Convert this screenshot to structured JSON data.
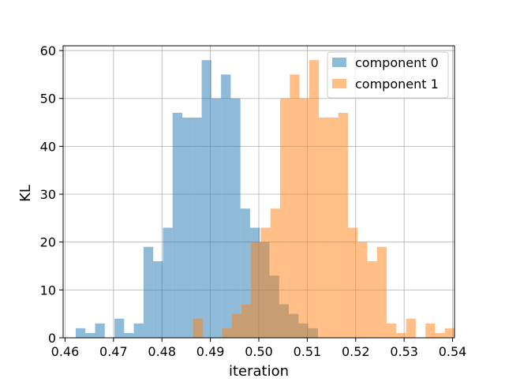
{
  "chart_data": {
    "type": "histogram",
    "title": "",
    "xlabel": "iteration",
    "ylabel": "KL",
    "xlim": [
      0.4596,
      0.5404
    ],
    "ylim": [
      0,
      61
    ],
    "xticks": [
      "0.46",
      "0.47",
      "0.48",
      "0.49",
      "0.50",
      "0.51",
      "0.52",
      "0.53",
      "0.54"
    ],
    "yticks": [
      "0",
      "10",
      "20",
      "30",
      "40",
      "50",
      "60"
    ],
    "grid": true,
    "legend_position": "top-right",
    "series": [
      {
        "name": "component 0",
        "color": "#1f77b4",
        "alpha": 0.5,
        "bin_start": 0.4622,
        "bin_width": 0.002,
        "counts": [
          2,
          1,
          3,
          0,
          4,
          1,
          3,
          19,
          16,
          23,
          47,
          46,
          46,
          58,
          50,
          55,
          50,
          27,
          23,
          20,
          13,
          7,
          5,
          3,
          2,
          0,
          0
        ]
      },
      {
        "name": "component 1",
        "color": "#ff7f0e",
        "alpha": 0.5,
        "bin_start": 0.4864,
        "bin_width": 0.002,
        "counts": [
          4,
          0,
          0,
          2,
          5,
          7,
          20,
          23,
          27,
          50,
          55,
          50,
          58,
          46,
          46,
          47,
          23,
          20,
          16,
          19,
          3,
          1,
          4,
          0,
          3,
          1,
          2
        ]
      }
    ]
  }
}
